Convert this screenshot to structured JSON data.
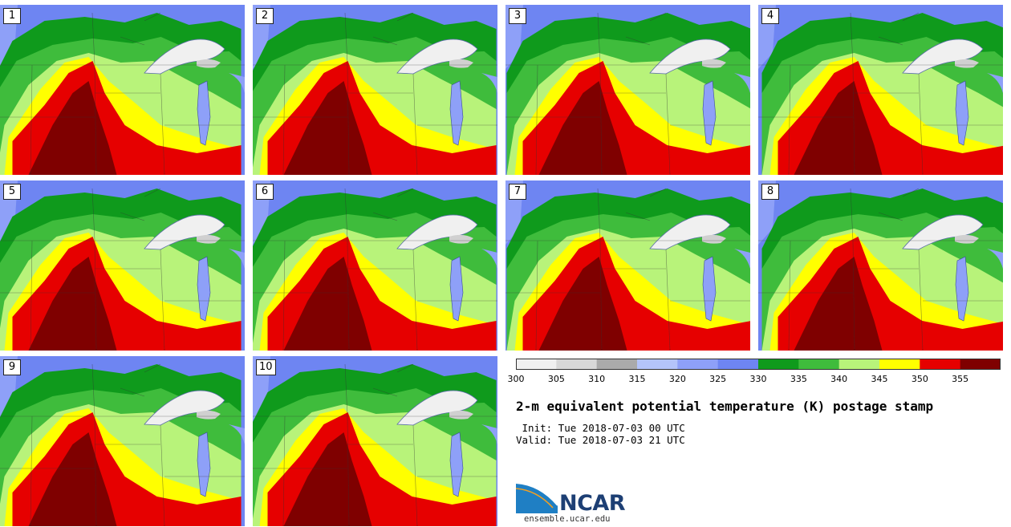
{
  "panels": [
    {
      "label": "1"
    },
    {
      "label": "2"
    },
    {
      "label": "3"
    },
    {
      "label": "4"
    },
    {
      "label": "5"
    },
    {
      "label": "6"
    },
    {
      "label": "7"
    },
    {
      "label": "8"
    },
    {
      "label": "9"
    },
    {
      "label": "10"
    }
  ],
  "legend": {
    "ticks": [
      "300",
      "305",
      "310",
      "315",
      "320",
      "325",
      "330",
      "335",
      "340",
      "345",
      "350",
      "355"
    ],
    "colors": [
      "#f0f0f0",
      "#d8d8d8",
      "#aaaaaa",
      "#b4c4fa",
      "#8ea0f8",
      "#6e85f2",
      "#0f9a1c",
      "#3fbc3c",
      "#b8f37a",
      "#ffff00",
      "#e60000",
      "#7f0000"
    ]
  },
  "title": "2-m equivalent potential temperature (K) postage stamp",
  "init_line": " Init: Tue 2018-07-03 00 UTC",
  "valid_line": "Valid: Tue 2018-07-03 21 UTC",
  "logo": {
    "text": "NCAR",
    "url": "ensemble.ucar.edu"
  },
  "map_colors": {
    "cold": "#6e85f2",
    "cool": "#8ea0f8",
    "dark_green": "#0f9a1c",
    "green": "#3fbc3c",
    "light_green": "#b8f37a",
    "yellow": "#ffff00",
    "red": "#e60000",
    "dark_red": "#7f0000",
    "lake": "#f0f0f0",
    "lake_shade": "#d0d0d0"
  }
}
